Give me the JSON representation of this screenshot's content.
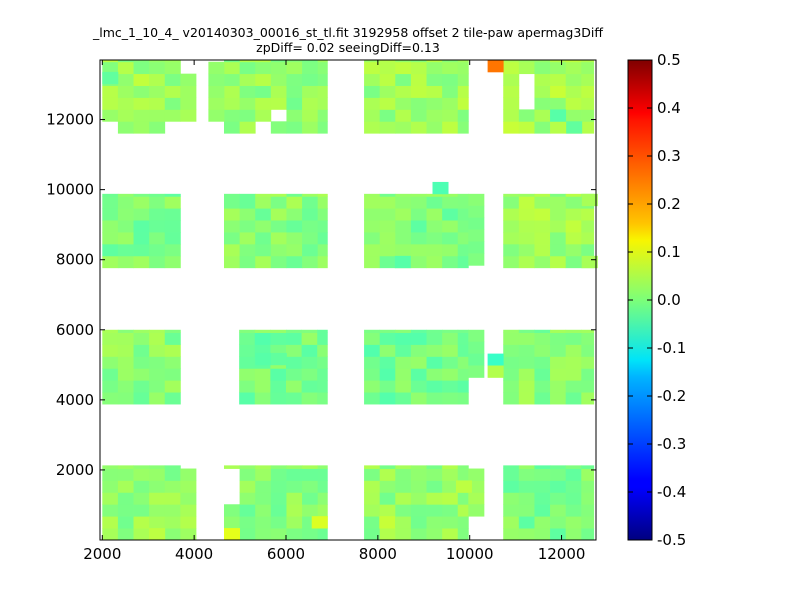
{
  "chart_data": {
    "type": "heatmap",
    "title_line1": "_lmc_1_10_4_ v20140303_00016_st_tl.fit 3192958 offset 2 tile-paw apermag3Diff",
    "title_line2": "zpDiff= 0.02 seeingDiff=0.13",
    "xlabel": "",
    "ylabel": "",
    "xlim": [
      1950,
      12750
    ],
    "ylim": [
      0,
      13700
    ],
    "xticks": [
      "2000",
      "4000",
      "6000",
      "8000",
      "10000",
      "12000"
    ],
    "yticks": [
      "2000",
      "4000",
      "6000",
      "8000",
      "10000",
      "12000"
    ],
    "colorbar": {
      "colormap": "jet",
      "range": [
        -0.5,
        0.5
      ],
      "ticks": [
        "0.5",
        "0.4",
        "0.3",
        "0.2",
        "0.1",
        "0.0",
        "-0.1",
        "-0.2",
        "-0.3",
        "-0.4",
        "-0.5"
      ]
    },
    "grid": false,
    "cell_size": [
      340,
      340
    ],
    "blocks": [
      {
        "x0": 2000,
        "x1": 3700,
        "y0": 0,
        "y1": 2130,
        "base": 0.02
      },
      {
        "x0": 4650,
        "x1": 6900,
        "y0": 0,
        "y1": 2130,
        "base": 0.01
      },
      {
        "x0": 7700,
        "x1": 9970,
        "y0": 0,
        "y1": 2130,
        "base": 0.02
      },
      {
        "x0": 10730,
        "x1": 12700,
        "y0": 0,
        "y1": 2130,
        "base": 0.0
      },
      {
        "x0": 2000,
        "x1": 3700,
        "y0": 3880,
        "y1": 6000,
        "base": 0.01
      },
      {
        "x0": 4980,
        "x1": 6900,
        "y0": 3880,
        "y1": 6000,
        "base": -0.01
      },
      {
        "x0": 7700,
        "x1": 9970,
        "y0": 3880,
        "y1": 6000,
        "base": -0.01
      },
      {
        "x0": 10730,
        "x1": 12700,
        "y0": 3880,
        "y1": 6000,
        "base": 0.01
      },
      {
        "x0": 2000,
        "x1": 3700,
        "y0": 7770,
        "y1": 9880,
        "base": 0.0
      },
      {
        "x0": 4650,
        "x1": 6900,
        "y0": 7770,
        "y1": 9880,
        "base": 0.01
      },
      {
        "x0": 7700,
        "x1": 9970,
        "y0": 7770,
        "y1": 9880,
        "base": 0.0
      },
      {
        "x0": 10730,
        "x1": 12700,
        "y0": 7770,
        "y1": 9880,
        "base": 0.03
      },
      {
        "x0": 2000,
        "x1": 3700,
        "y0": 11610,
        "y1": 13700,
        "base": 0.03
      },
      {
        "x0": 4650,
        "x1": 6900,
        "y0": 11610,
        "y1": 13700,
        "base": 0.02
      },
      {
        "x0": 7700,
        "x1": 9970,
        "y0": 11610,
        "y1": 13700,
        "base": 0.03
      },
      {
        "x0": 10730,
        "x1": 12700,
        "y0": 11610,
        "y1": 13700,
        "base": 0.04
      }
    ],
    "extra_cells": [
      {
        "x": 3700,
        "y": 0,
        "value": 0.03
      },
      {
        "x": 3700,
        "y": 340,
        "value": 0.05
      },
      {
        "x": 3700,
        "y": 680,
        "value": 0.04
      },
      {
        "x": 3700,
        "y": 1020,
        "value": 0.02
      },
      {
        "x": 3700,
        "y": 1360,
        "value": 0.03
      },
      {
        "x": 3700,
        "y": 1700,
        "value": 0.02
      },
      {
        "x": 3700,
        "y": 11950,
        "value": 0.04
      },
      {
        "x": 3700,
        "y": 12290,
        "value": 0.03
      },
      {
        "x": 3700,
        "y": 12630,
        "value": 0.03
      },
      {
        "x": 3700,
        "y": 12970,
        "value": 0.02
      },
      {
        "x": 9970,
        "y": 1020,
        "value": 0.04
      },
      {
        "x": 9970,
        "y": 1360,
        "value": 0.03
      },
      {
        "x": 9970,
        "y": 1700,
        "value": 0.02
      },
      {
        "x": 9970,
        "y": 680,
        "value": 0.02
      },
      {
        "x": 9970,
        "y": 5660,
        "value": 0.0
      },
      {
        "x": 9970,
        "y": 5320,
        "value": -0.01
      },
      {
        "x": 9970,
        "y": 4980,
        "value": -0.02
      },
      {
        "x": 9970,
        "y": 4640,
        "value": 0.0
      },
      {
        "x": 9970,
        "y": 9540,
        "value": 0.01
      },
      {
        "x": 9970,
        "y": 9200,
        "value": 0.0
      },
      {
        "x": 9970,
        "y": 8860,
        "value": -0.01
      },
      {
        "x": 9970,
        "y": 8520,
        "value": 0.0
      },
      {
        "x": 9970,
        "y": 8180,
        "value": -0.01
      },
      {
        "x": 9970,
        "y": 7840,
        "value": 0.0
      },
      {
        "x": 4310,
        "y": 11950,
        "value": 0.02
      },
      {
        "x": 4310,
        "y": 12290,
        "value": 0.03
      },
      {
        "x": 4310,
        "y": 12630,
        "value": 0.02
      },
      {
        "x": 4310,
        "y": 12970,
        "value": 0.01
      },
      {
        "x": 4310,
        "y": 13310,
        "value": 0.02
      }
    ],
    "holes": [
      {
        "x": 2000,
        "y": 11610
      },
      {
        "x": 3360,
        "y": 11610
      },
      {
        "x": 3700,
        "y": 11610
      },
      {
        "x": 5670,
        "y": 11950
      },
      {
        "x": 5330,
        "y": 11610
      },
      {
        "x": 11070,
        "y": 12630
      },
      {
        "x": 11070,
        "y": 12970
      },
      {
        "x": 11070,
        "y": 12290
      },
      {
        "x": 12440,
        "y": 9540
      },
      {
        "x": 12440,
        "y": 9200
      },
      {
        "x": 12440,
        "y": 8860
      },
      {
        "x": 12440,
        "y": 8520
      },
      {
        "x": 12440,
        "y": 5660
      },
      {
        "x": 12440,
        "y": 5320
      },
      {
        "x": 12440,
        "y": 4980
      },
      {
        "x": 12440,
        "y": 4640
      },
      {
        "x": 12440,
        "y": 4300
      },
      {
        "x": 3360,
        "y": 5320
      },
      {
        "x": 3360,
        "y": 5660
      },
      {
        "x": 4650,
        "y": 1020
      },
      {
        "x": 4650,
        "y": 1360
      },
      {
        "x": 4650,
        "y": 1700
      },
      {
        "x": 12440,
        "y": 1360
      },
      {
        "x": 12440,
        "y": 1700
      },
      {
        "x": 12100,
        "y": 680
      },
      {
        "x": 12100,
        "y": 1020
      },
      {
        "x": 12440,
        "y": 0
      },
      {
        "x": 12440,
        "y": 340
      },
      {
        "x": 12440,
        "y": 680
      },
      {
        "x": 12440,
        "y": 1020
      },
      {
        "x": 10730,
        "y": 5320
      },
      {
        "x": 10730,
        "y": 4980
      },
      {
        "x": 10730,
        "y": 4640
      },
      {
        "x": 10730,
        "y": 4300
      }
    ],
    "special_cells": [
      {
        "x": 10390,
        "y": 13360,
        "value": 0.26
      },
      {
        "x": 4650,
        "y": 0,
        "value": 0.1
      },
      {
        "x": 6560,
        "y": 340,
        "value": 0.09
      },
      {
        "x": 8030,
        "y": 340,
        "value": 0.07
      },
      {
        "x": 9700,
        "y": 1360,
        "value": 0.06
      },
      {
        "x": 3020,
        "y": 0,
        "value": 0.06
      },
      {
        "x": 9190,
        "y": 9880,
        "value": -0.05
      },
      {
        "x": 10390,
        "y": 4980,
        "value": -0.07
      },
      {
        "x": 10390,
        "y": 4640,
        "value": 0.05
      },
      {
        "x": 11750,
        "y": 11950,
        "value": -0.04
      },
      {
        "x": 12100,
        "y": 11610,
        "value": -0.03
      },
      {
        "x": 12440,
        "y": 7770,
        "value": 0.04
      },
      {
        "x": 12440,
        "y": 9540,
        "value": 0.04
      },
      {
        "x": 5330,
        "y": 5000,
        "value": -0.04
      },
      {
        "x": 5670,
        "y": 5000,
        "value": -0.03
      },
      {
        "x": 8370,
        "y": 7770,
        "value": -0.04
      },
      {
        "x": 2000,
        "y": 13020,
        "value": -0.03
      }
    ]
  }
}
